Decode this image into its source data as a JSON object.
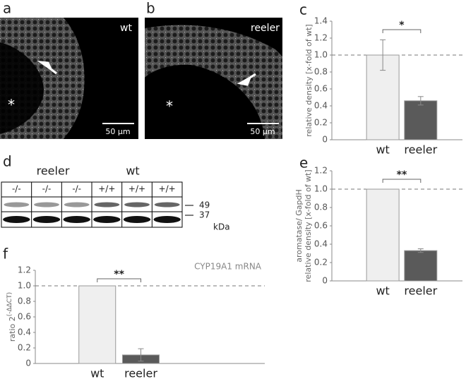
{
  "chart_data": [
    {
      "type": "bar",
      "panel": "c",
      "ylabel": "relative density [x-fold of wt]",
      "categories": [
        "wt",
        "reeler"
      ],
      "values": [
        1.0,
        0.46
      ],
      "errors": [
        0.18,
        0.05
      ],
      "colors": [
        "#efefef",
        "#5a5a5a"
      ],
      "ylim": [
        0,
        1.4
      ],
      "yticks": [
        0,
        0.2,
        0.4,
        0.6,
        0.8,
        {
          "value": 1,
          "label": "1.0"
        },
        1.2,
        1.4
      ],
      "hline": 1,
      "significance": "*"
    },
    {
      "type": "bar",
      "panel": "e",
      "ylabel": [
        "aromatase/ GapdH",
        "relative density [x-fold of wt]"
      ],
      "categories": [
        "wt",
        "reeler"
      ],
      "values": [
        1.0,
        0.33
      ],
      "errors": [
        0,
        0.02
      ],
      "colors": [
        "#efefef",
        "#5a5a5a"
      ],
      "ylim": [
        0,
        1.2
      ],
      "yticks": [
        0,
        0.2,
        0.4,
        0.6,
        0.8,
        {
          "value": 1,
          "label": "1.0"
        },
        1.2
      ],
      "hline": 1,
      "significance": "**"
    },
    {
      "type": "bar",
      "panel": "f",
      "title": "CYP19A1 mRNA",
      "ylabel": "ratio 2",
      "ylabel_sup": "(-ΔΔCT)",
      "categories": [
        "wt",
        "reeler"
      ],
      "values": [
        1.0,
        0.11
      ],
      "errors": [
        0,
        0.08
      ],
      "colors": [
        "#efefef",
        "#5a5a5a"
      ],
      "ylim": [
        0,
        1.2
      ],
      "yticks": [
        0,
        0.2,
        0.4,
        0.6,
        0.8,
        {
          "value": 1,
          "label": "1.0"
        },
        1.2
      ],
      "hline": 1,
      "significance": "**"
    }
  ],
  "panels": {
    "a": {
      "letter": "a",
      "label": "wt",
      "marker": "*",
      "scale": "50 µm"
    },
    "b": {
      "letter": "b",
      "label": "reeler",
      "marker": "*",
      "scale": "50 µm"
    },
    "d": {
      "letter": "d",
      "groups": [
        "reeler",
        "wt"
      ],
      "lanes": [
        "-/-",
        "-/-",
        "-/-",
        "+/+",
        "+/+",
        "+/+"
      ],
      "markers": [
        "49",
        "37"
      ],
      "unit": "kDa"
    }
  }
}
